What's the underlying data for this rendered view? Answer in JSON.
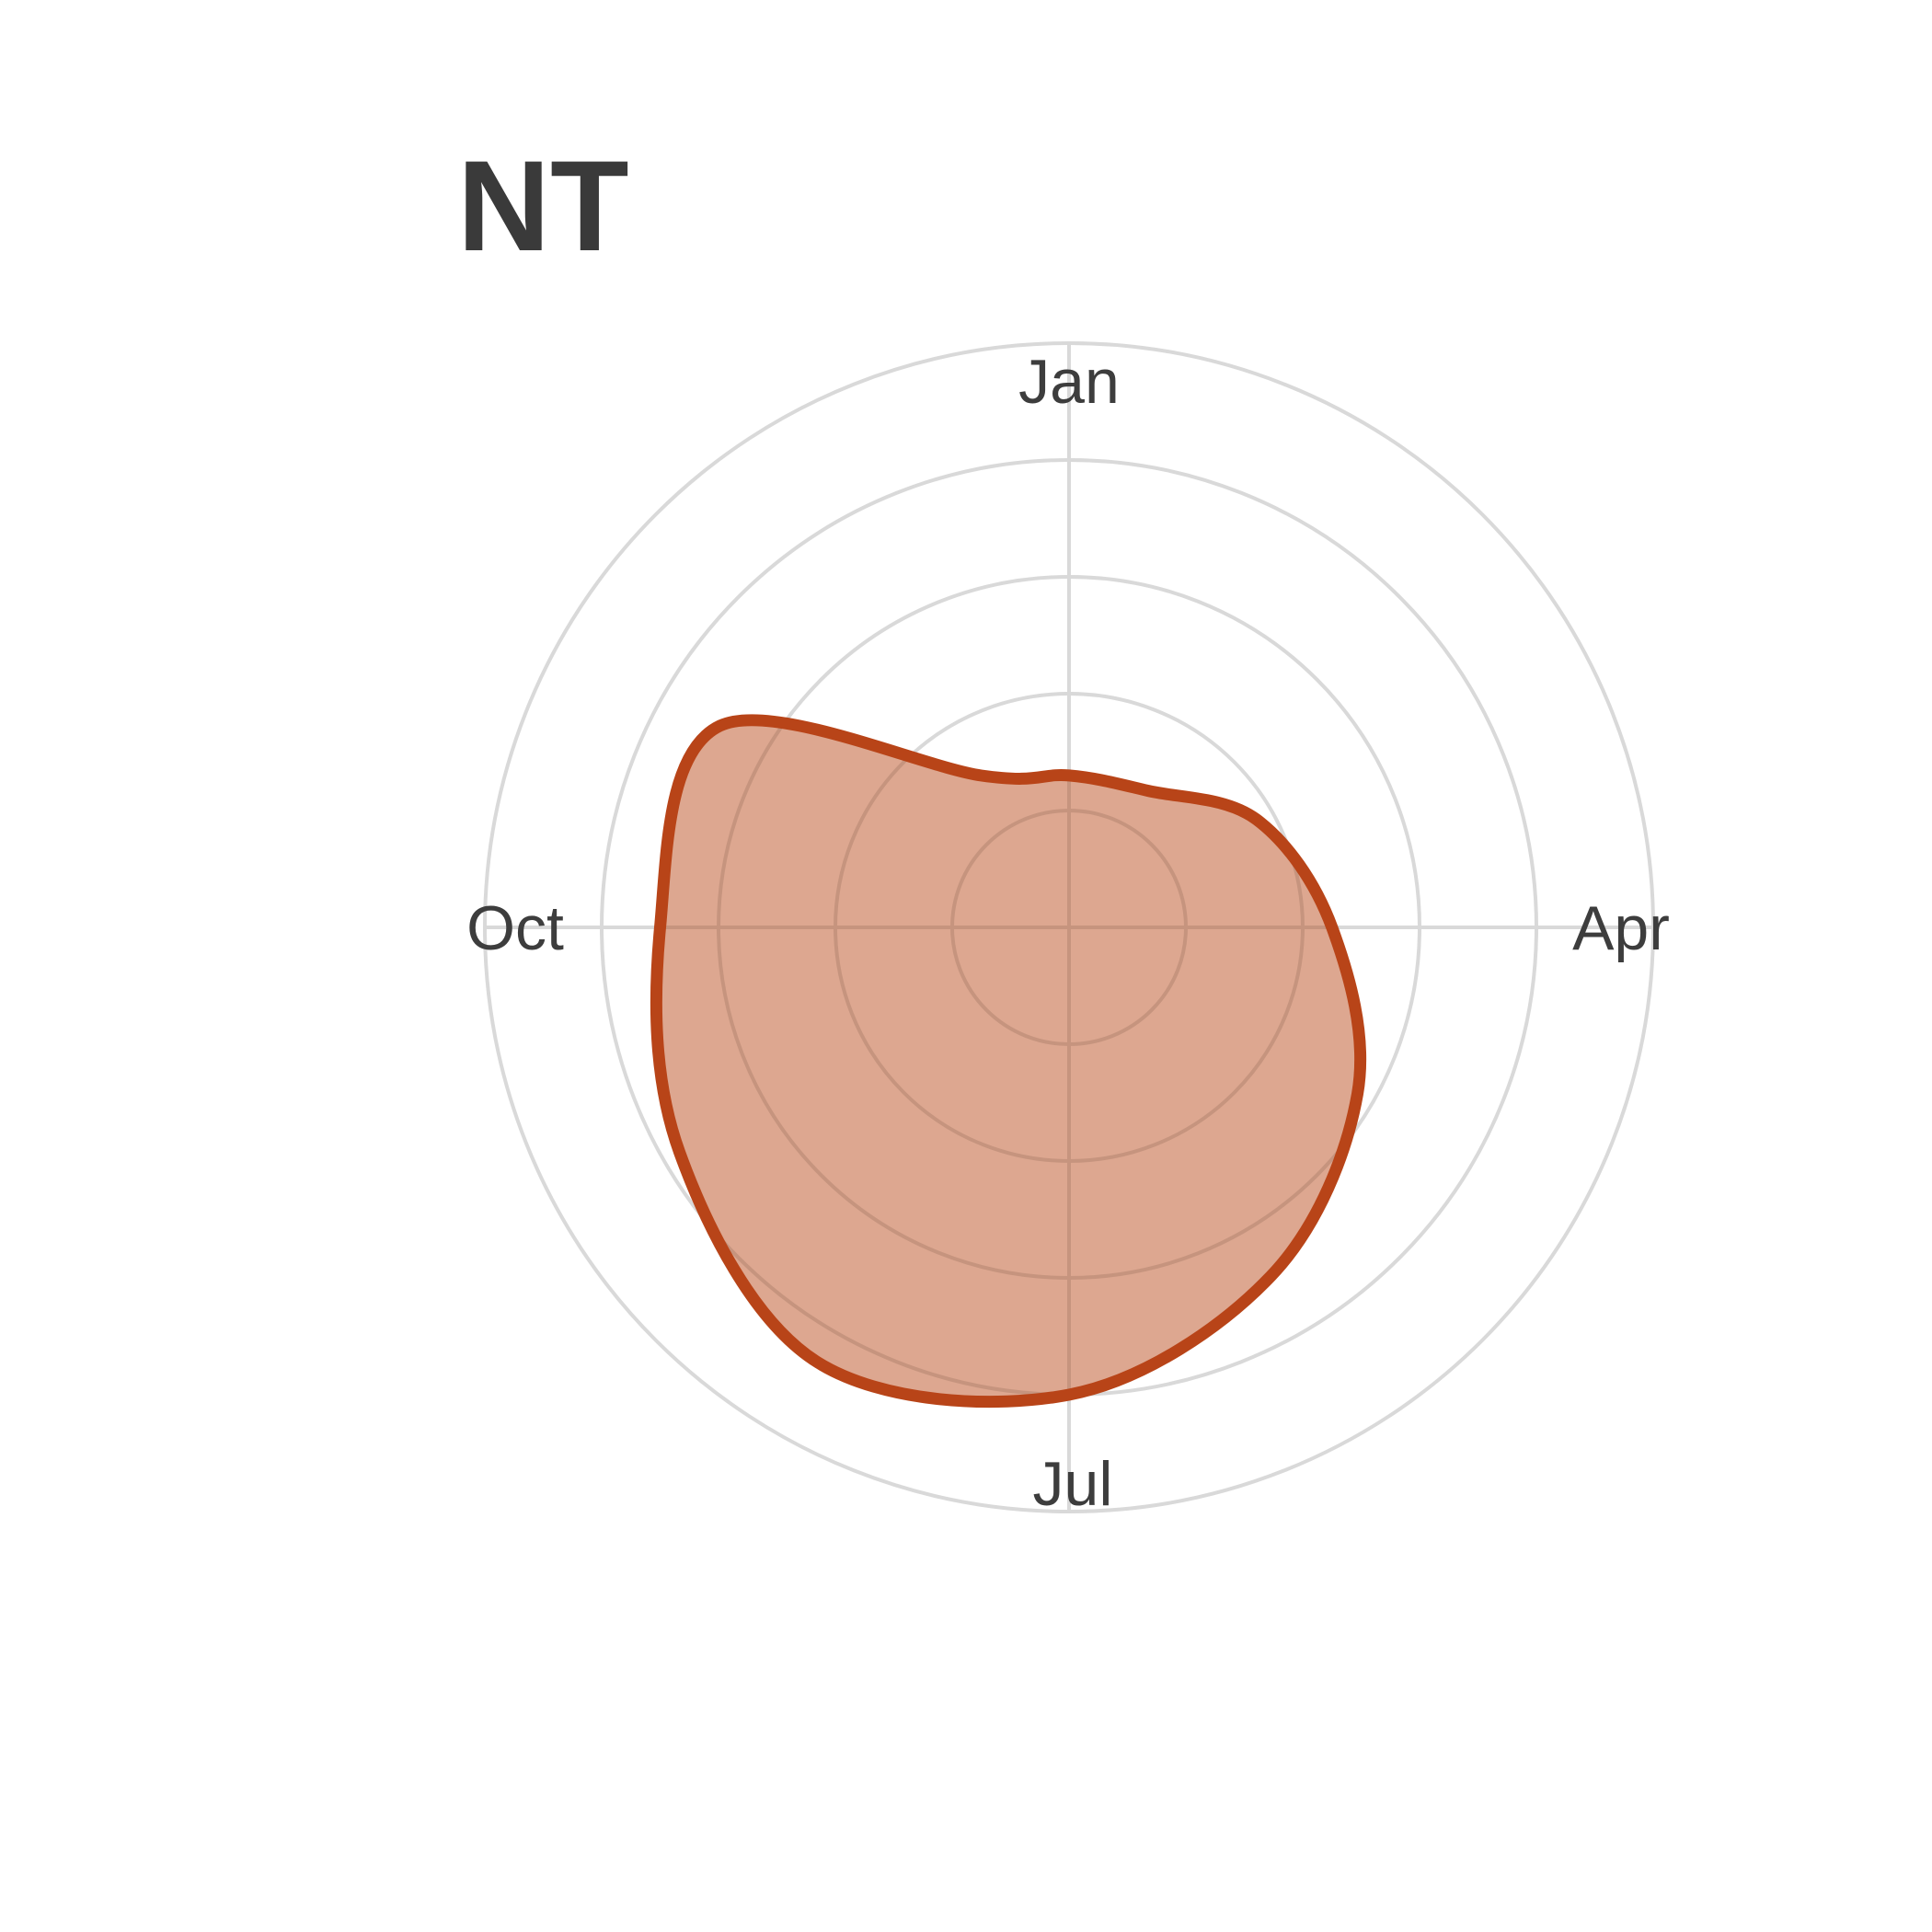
{
  "chart_data": {
    "type": "area",
    "subtype": "polar-radial",
    "title": "NT",
    "theta_axis": {
      "tick_labels": [
        "Jan",
        "Apr",
        "Jul",
        "Oct"
      ],
      "period": 12,
      "start": "Jan",
      "direction": "clockwise"
    },
    "r_axis": {
      "grid_levels": [
        1,
        2,
        3,
        4,
        5
      ],
      "tick_labels_shown": false
    },
    "grid": true,
    "series": [
      {
        "months": [
          1,
          2,
          3,
          4,
          5,
          6,
          7,
          8,
          9,
          10,
          11,
          12
        ],
        "values": [
          1.3,
          1.35,
          1.85,
          2.25,
          2.85,
          3.45,
          4.0,
          4.3,
          3.85,
          3.5,
          3.45,
          1.5
        ],
        "fill_color": "#dba28a",
        "line_color": "#b84418"
      }
    ]
  }
}
